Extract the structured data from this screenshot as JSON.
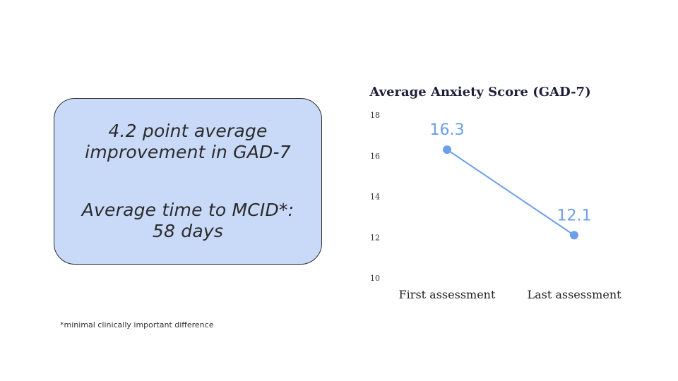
{
  "callout": {
    "line1": "4.2 point average",
    "line2": "improvement in GAD-7",
    "line3": "Average time to MCID*:",
    "line4": "58 days"
  },
  "footnote": "*minimal clinically important difference",
  "chart_data": {
    "type": "line",
    "title": "Average Anxiety Score (GAD-7)",
    "categories": [
      "First assessment",
      "Last assessment"
    ],
    "series": [
      {
        "values": [
          16.3,
          12.1
        ],
        "color": "#6d9eeb"
      }
    ],
    "data_labels": [
      "16.3",
      "12.1"
    ],
    "ylim": [
      10,
      18
    ],
    "yticks": [
      10,
      12,
      14,
      16,
      18
    ],
    "grid": false,
    "legend": "none"
  }
}
